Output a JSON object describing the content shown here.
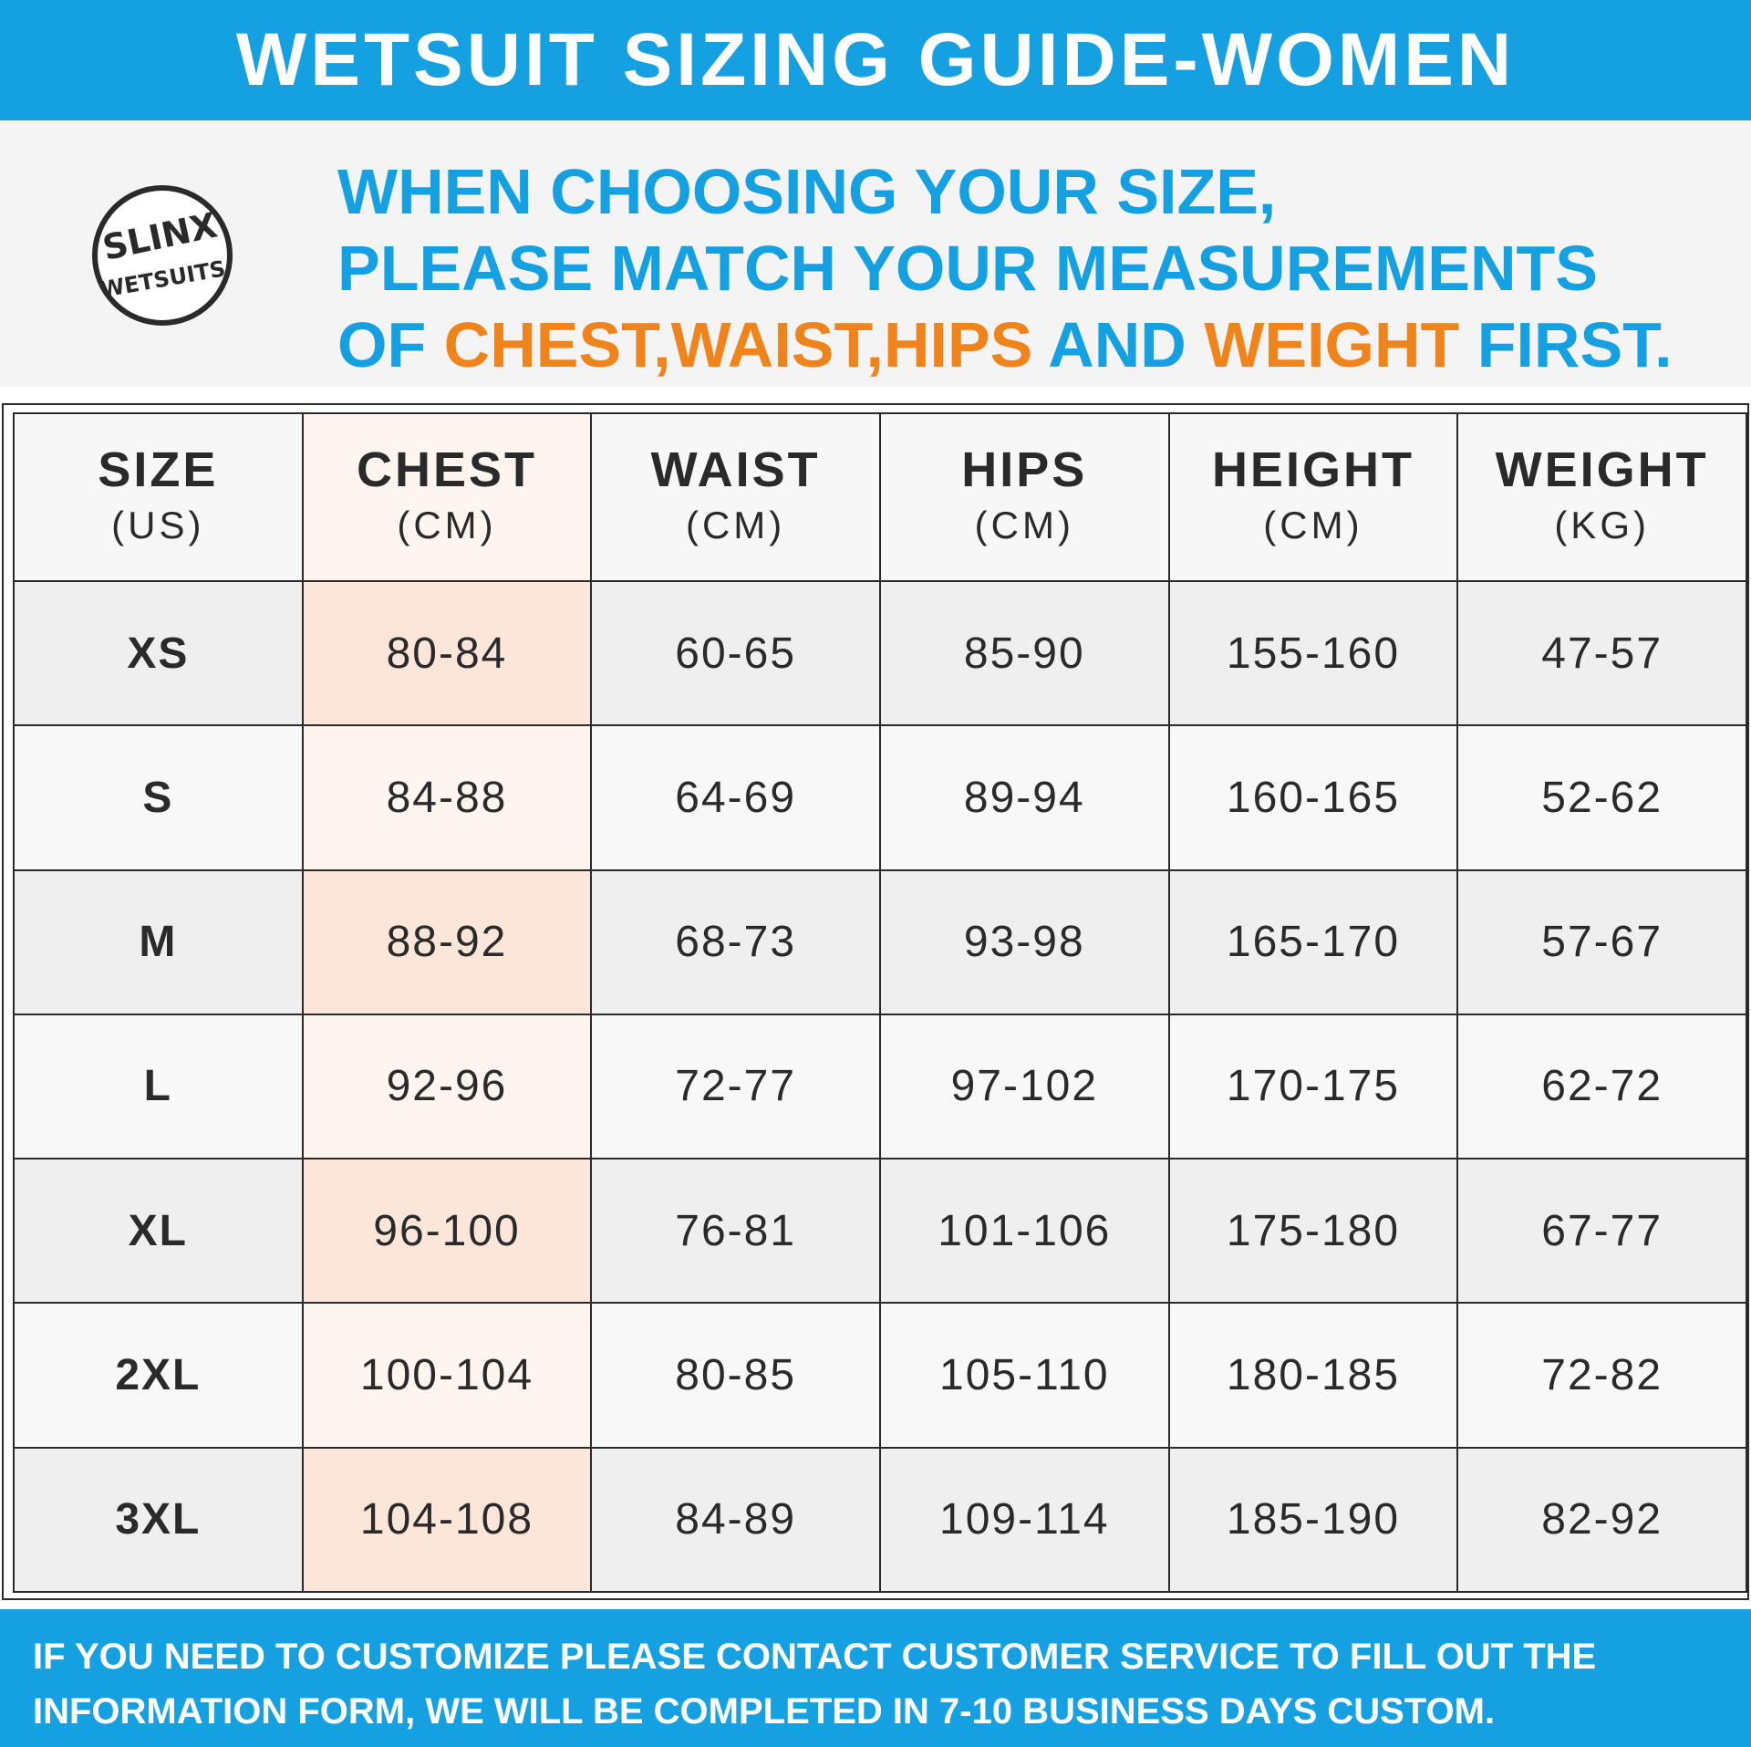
{
  "title": "WETSUIT SIZING GUIDE-WOMEN",
  "brand_logo": {
    "line1": "SLINX",
    "line2": "WETSUITS"
  },
  "instructions": {
    "line1": "WHEN CHOOSING YOUR SIZE,",
    "line2": "PLEASE MATCH YOUR MEASUREMENTS",
    "line3": {
      "of": "OF ",
      "chest": "CHEST,",
      "waist": "WAIST,",
      "hips": "HIPS",
      "and": " AND ",
      "weight": "WEIGHT",
      "first": " FIRST."
    }
  },
  "table": {
    "headers": [
      {
        "label": "SIZE",
        "unit": "(US)"
      },
      {
        "label": "CHEST",
        "unit": "(CM)"
      },
      {
        "label": "WAIST",
        "unit": "(CM)"
      },
      {
        "label": "HIPS",
        "unit": "(CM)"
      },
      {
        "label": "HEIGHT",
        "unit": "(CM)"
      },
      {
        "label": "WEIGHT",
        "unit": "(KG)"
      }
    ],
    "rows": [
      [
        "XS",
        "80-84",
        "60-65",
        "85-90",
        "155-160",
        "47-57"
      ],
      [
        "S",
        "84-88",
        "64-69",
        "89-94",
        "160-165",
        "52-62"
      ],
      [
        "M",
        "88-92",
        "68-73",
        "93-98",
        "165-170",
        "57-67"
      ],
      [
        "L",
        "92-96",
        "72-77",
        "97-102",
        "170-175",
        "62-72"
      ],
      [
        "XL",
        "96-100",
        "76-81",
        "101-106",
        "175-180",
        "67-77"
      ],
      [
        "2XL",
        "100-104",
        "80-85",
        "105-110",
        "180-185",
        "72-82"
      ],
      [
        "3XL",
        "104-108",
        "84-89",
        "109-114",
        "185-190",
        "82-92"
      ]
    ]
  },
  "footer": {
    "line1": "IF YOU NEED TO CUSTOMIZE PLEASE CONTACT CUSTOMER SERVICE TO FILL OUT THE",
    "line2": "INFORMATION FORM, WE WILL BE COMPLETED IN 7-10 BUSINESS DAYS CUSTOM."
  },
  "colors": {
    "brand_blue": "#15a0e2",
    "highlight_orange": "#f0841c",
    "chest_column_tint": "#fce6da",
    "text_dark": "#2a2a2a"
  }
}
